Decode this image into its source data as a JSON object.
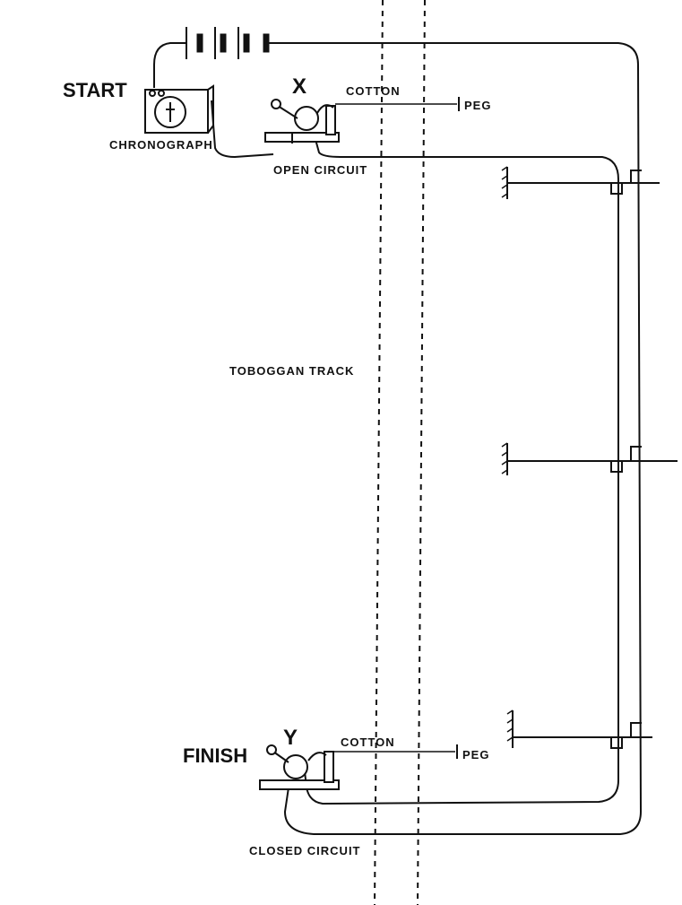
{
  "labels": {
    "start": "START",
    "finish": "FINISH",
    "x": "X",
    "y": "Y",
    "chronograph": "CHRONOGRAPH",
    "cotton_top": "COTTON",
    "cotton_bottom": "COTTON",
    "peg_top": "PEG",
    "peg_bottom": "PEG",
    "open_circuit": "OPEN CIRCUIT",
    "closed_circuit": "CLOSED CIRCUIT",
    "toboggan_track": "TOBOGGAN TRACK"
  },
  "colors": {
    "ink": "#111111",
    "paper": "#ffffff"
  }
}
